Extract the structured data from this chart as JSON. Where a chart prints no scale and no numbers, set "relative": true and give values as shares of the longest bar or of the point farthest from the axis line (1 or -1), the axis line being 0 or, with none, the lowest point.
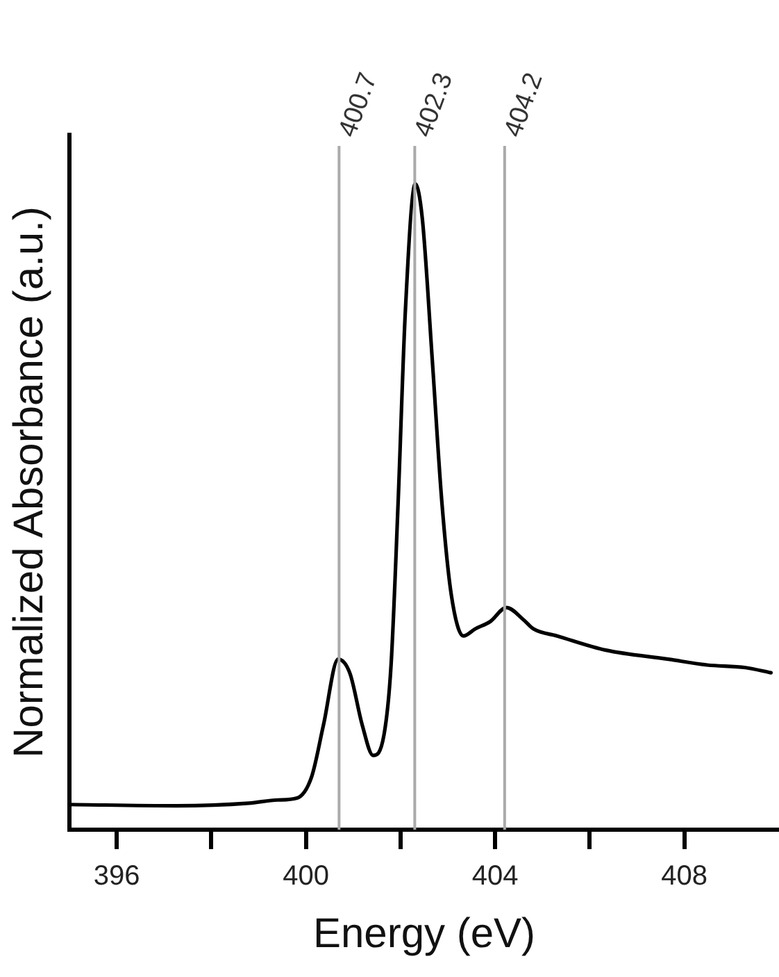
{
  "chart_data": {
    "type": "line",
    "xlabel": "Energy (eV)",
    "ylabel": "Normalized Absorbance (a.u.)",
    "relative": true,
    "xlim": [
      395,
      410
    ],
    "xticks": [
      396,
      {
        "value": 398,
        "label": null
      },
      400,
      {
        "value": 402,
        "label": null
      },
      404,
      {
        "value": 406,
        "label": null
      },
      408
    ],
    "series": [
      {
        "color": "#000000",
        "x": [
          395.0,
          397.26,
          398.79,
          399.4,
          399.81,
          400.12,
          400.37,
          400.68,
          400.93,
          401.19,
          401.42,
          401.65,
          401.8,
          401.95,
          402.1,
          402.31,
          402.46,
          402.67,
          402.87,
          403.07,
          403.33,
          403.58,
          403.89,
          404.24,
          404.6,
          404.81,
          405.31,
          406.34,
          407.66,
          408.48,
          409.29,
          409.83
        ],
        "values": [
          0.039,
          0.037,
          0.041,
          0.046,
          0.049,
          0.082,
          0.162,
          0.264,
          0.242,
          0.162,
          0.115,
          0.147,
          0.256,
          0.51,
          0.801,
          1.0,
          0.946,
          0.728,
          0.51,
          0.365,
          0.3,
          0.311,
          0.322,
          0.344,
          0.325,
          0.311,
          0.3,
          0.278,
          0.264,
          0.255,
          0.251,
          0.243
        ]
      }
    ],
    "ref_lines": [
      {
        "axis": "x",
        "value": 400.7,
        "label": "400.7",
        "color": "#aaaaaa"
      },
      {
        "axis": "x",
        "value": 402.3,
        "label": "402.3",
        "color": "#aaaaaa"
      },
      {
        "axis": "x",
        "value": 404.2,
        "label": "404.2",
        "color": "#aaaaaa"
      }
    ],
    "grid": false,
    "legend": false,
    "marker": "none",
    "line_style": "solid"
  }
}
